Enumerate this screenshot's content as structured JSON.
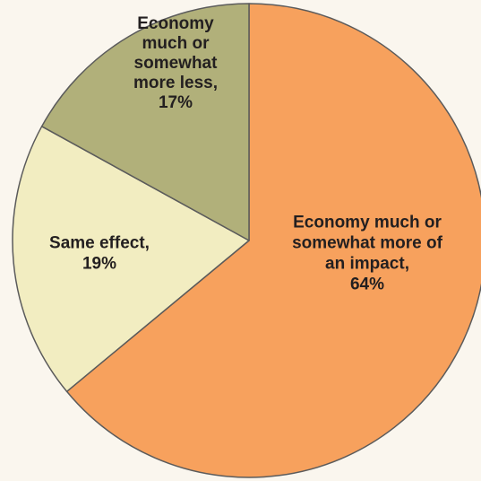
{
  "chart_data": {
    "type": "pie",
    "slices": [
      {
        "value": 64,
        "color": "#f7a15d",
        "label_lines": [
          "Economy much or",
          "somewhat more of",
          "an impact,",
          "64%"
        ]
      },
      {
        "value": 19,
        "color": "#f2edc1",
        "label_lines": [
          "Same effect,",
          "19%"
        ]
      },
      {
        "value": 17,
        "color": "#b1b07a",
        "label_lines": [
          "Economy",
          "much or",
          "somewhat",
          "more less,",
          "17%"
        ]
      }
    ],
    "direction": "clockwise from top",
    "outline_color": "#5b5b5b",
    "background_color": "#faf6ee"
  }
}
